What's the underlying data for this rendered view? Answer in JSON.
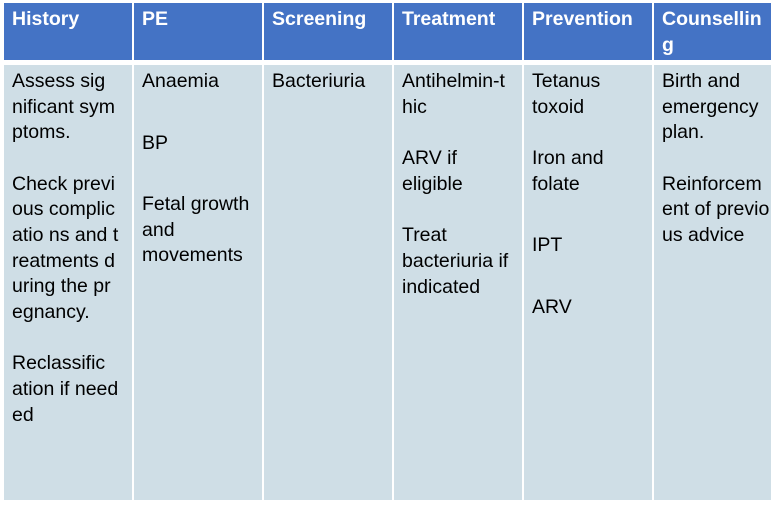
{
  "table": {
    "headers": [
      "History",
      "PE",
      "Screening",
      "Treatment",
      "Prevention",
      "Counsellin g"
    ],
    "columns": [
      {
        "items": [
          "Assess significant symptoms.",
          "Check previous complicatio ns and treatments during the pregnancy.",
          "Reclassific ation if needed"
        ]
      },
      {
        "items": [
          "Anaemia",
          "BP",
          "Fetal growth and movements"
        ]
      },
      {
        "items": [
          "Bacteriuria"
        ]
      },
      {
        "items": [
          "Antihelmin-thic",
          "ARV if eligible",
          "Treat bacteriuria if indicated"
        ]
      },
      {
        "items": [
          "Tetanus toxoid",
          "Iron and folate",
          "IPT",
          "ARV"
        ]
      },
      {
        "items": [
          "Birth and emergency plan.",
          "Reinforcem ent of previous advice"
        ]
      }
    ]
  },
  "colors": {
    "header_bg": "#4473c5",
    "body_bg": "#cfdee6",
    "header_text": "#ffffff",
    "body_text": "#000000"
  }
}
